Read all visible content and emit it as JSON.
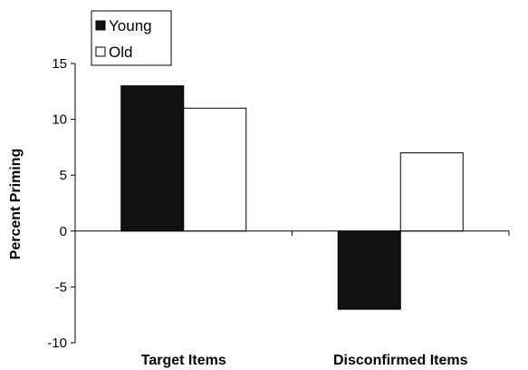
{
  "chart_data": {
    "type": "bar",
    "title": "",
    "xlabel": "",
    "ylabel": "Percent Priming",
    "categories": [
      "Target Items",
      "Disconfirmed Items"
    ],
    "series": [
      {
        "name": "Young",
        "values": [
          13,
          -7
        ],
        "color": "#111111"
      },
      {
        "name": "Old",
        "values": [
          11,
          7
        ],
        "color": "#ffffff"
      }
    ],
    "ylim": [
      -10,
      15
    ],
    "yticks": [
      "15",
      "10",
      "5",
      "0",
      "-5",
      "-10"
    ],
    "grid": false,
    "legend_position": "top-left"
  }
}
